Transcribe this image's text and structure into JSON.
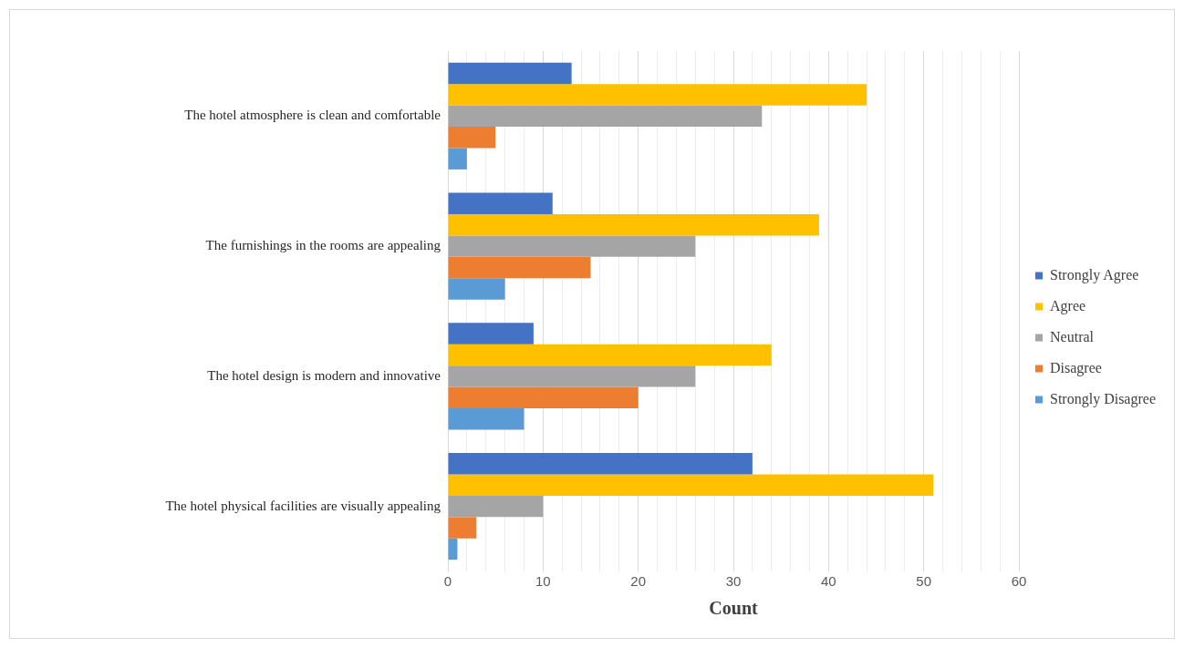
{
  "chart_data": {
    "type": "bar",
    "orientation": "horizontal",
    "xlabel": "Count",
    "categories": [
      "The hotel atmosphere is clean and comfortable",
      "The furnishings in the rooms are appealing",
      "The hotel design is modern and innovative",
      "The hotel physical facilities are visually appealing"
    ],
    "series": [
      {
        "name": "Strongly Agree",
        "color": "#4472c4",
        "values": [
          13,
          11,
          9,
          32
        ]
      },
      {
        "name": "Agree",
        "color": "#ffc000",
        "values": [
          44,
          39,
          34,
          51
        ]
      },
      {
        "name": "Neutral",
        "color": "#a5a5a5",
        "values": [
          33,
          26,
          26,
          10
        ]
      },
      {
        "name": "Disagree",
        "color": "#ed7d31",
        "values": [
          5,
          15,
          20,
          3
        ]
      },
      {
        "name": "Strongly Disagree",
        "color": "#5b9bd5",
        "values": [
          2,
          6,
          8,
          1
        ]
      }
    ],
    "xlim": [
      0,
      60
    ],
    "xticks": [
      0,
      {
        "value": 2,
        "label": null
      },
      {
        "value": 4,
        "label": null
      },
      {
        "value": 6,
        "label": null
      },
      {
        "value": 8,
        "label": null
      },
      10,
      {
        "value": 12,
        "label": null
      },
      {
        "value": 14,
        "label": null
      },
      {
        "value": 16,
        "label": null
      },
      {
        "value": 18,
        "label": null
      },
      20,
      {
        "value": 22,
        "label": null
      },
      {
        "value": 24,
        "label": null
      },
      {
        "value": 26,
        "label": null
      },
      {
        "value": 28,
        "label": null
      },
      30,
      {
        "value": 32,
        "label": null
      },
      {
        "value": 34,
        "label": null
      },
      {
        "value": 36,
        "label": null
      },
      {
        "value": 38,
        "label": null
      },
      40,
      {
        "value": 42,
        "label": null
      },
      {
        "value": 44,
        "label": null
      },
      {
        "value": 46,
        "label": null
      },
      {
        "value": 48,
        "label": null
      },
      50,
      {
        "value": 52,
        "label": null
      },
      {
        "value": 54,
        "label": null
      },
      {
        "value": 56,
        "label": null
      },
      {
        "value": 58,
        "label": null
      },
      60
    ],
    "grid": "x",
    "legend": "right"
  }
}
